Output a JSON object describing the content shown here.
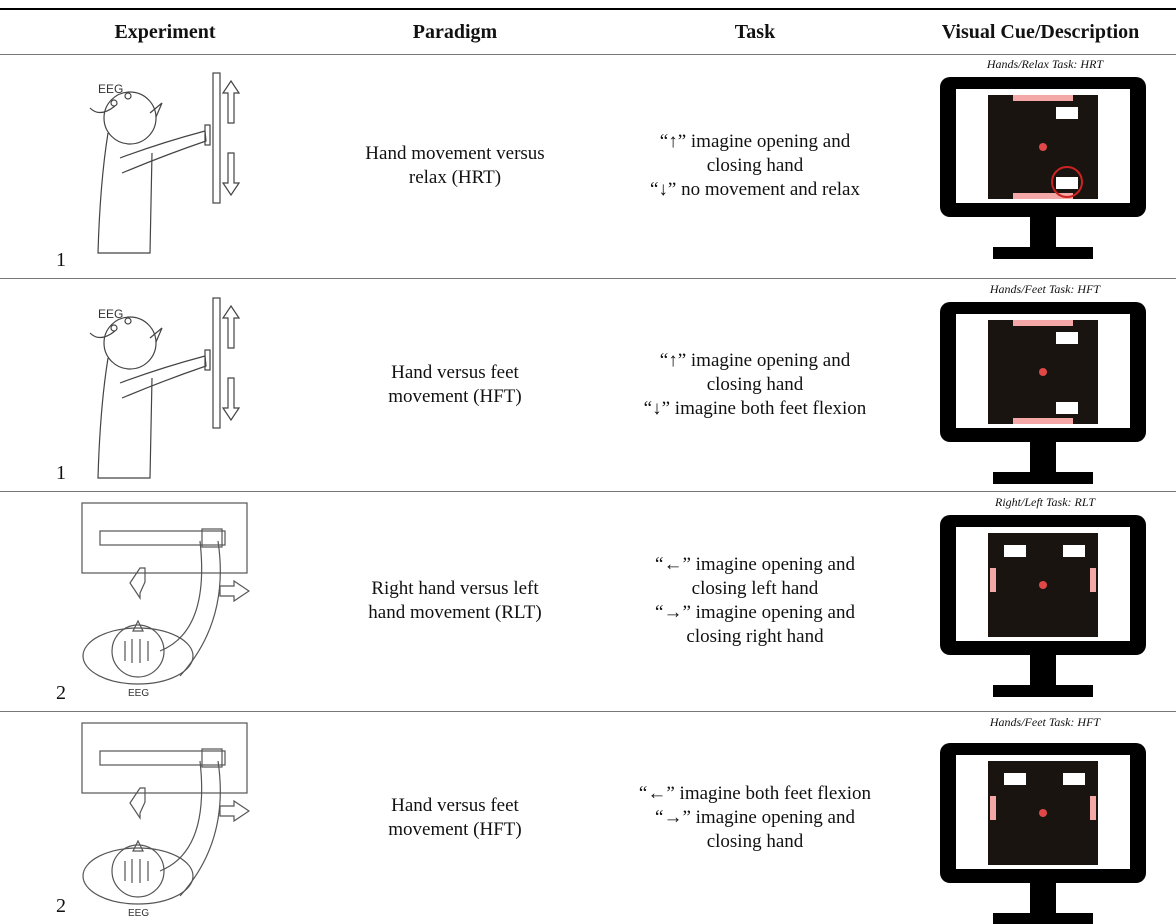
{
  "header": [
    "Experiment",
    "Paradigm",
    "Task",
    "Visual Cue/Description"
  ],
  "rows": [
    {
      "experiment": "1",
      "illustration_label": "EEG",
      "paradigm": "Hand movement versus relax (HRT)",
      "task": [
        "“↑” imagine opening and closing hand",
        "“↓” no movement and relax"
      ],
      "cue": "Hands/Relax Task: HRT"
    },
    {
      "experiment": "1",
      "illustration_label": "EEG",
      "paradigm": "Hand versus feet movement (HFT)",
      "task": [
        "“↑” imagine opening and closing hand",
        "“↓” imagine both feet flexion"
      ],
      "cue": "Hands/Feet Task: HFT"
    },
    {
      "experiment": "2",
      "illustration_label": "EEG",
      "paradigm": "Right hand versus left hand movement (RLT)",
      "task": [
        "“←” imagine opening and closing left hand",
        "“→” imagine opening and closing right hand"
      ],
      "cue": "Right/Left Task: RLT"
    },
    {
      "experiment": "2",
      "illustration_label": "EEG",
      "paradigm": "Hand versus feet movement (HFT)",
      "task": [
        "“←” imagine both feet flexion",
        "“→” imagine opening and closing hand"
      ],
      "cue": "Hands/Feet Task: HFT"
    }
  ]
}
